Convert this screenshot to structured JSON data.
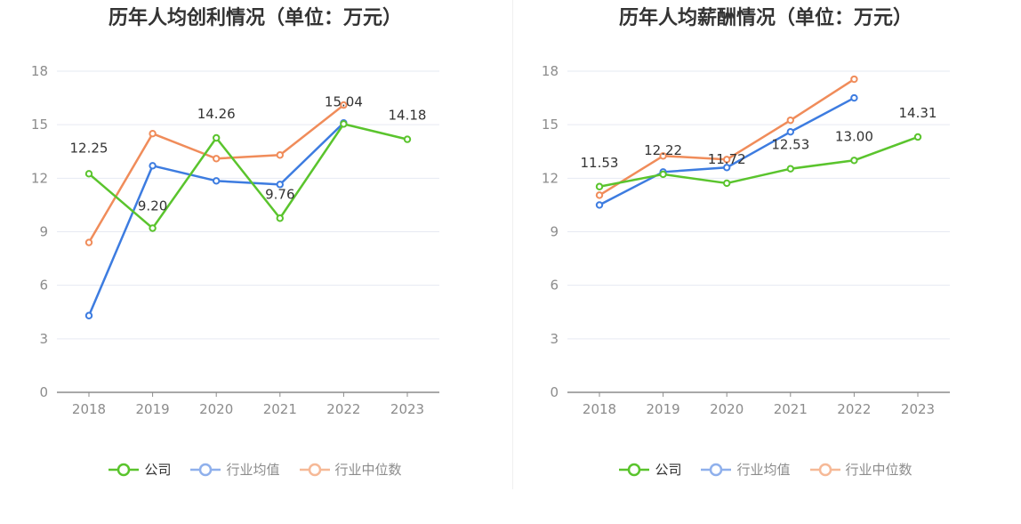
{
  "chart_data": [
    {
      "type": "line",
      "title": "历年人均创利情况（单位：万元）",
      "categories": [
        "2018",
        "2019",
        "2020",
        "2021",
        "2022",
        "2023"
      ],
      "y_ticks": [
        "0",
        "3",
        "6",
        "9",
        "12",
        "15",
        "18"
      ],
      "ylim": [
        0,
        18
      ],
      "grid": true,
      "legend_position": "bottom",
      "series": [
        {
          "name": "公司",
          "color": "#5ac42d",
          "values": [
            12.25,
            9.2,
            14.26,
            9.76,
            15.04,
            14.18
          ],
          "labels": [
            "12.25",
            "9.20",
            "14.26",
            "9.76",
            "15.04",
            "14.18"
          ]
        },
        {
          "name": "行业均值",
          "color": "#3d7ce0",
          "values": [
            4.3,
            12.7,
            11.85,
            11.65,
            15.1,
            null
          ]
        },
        {
          "name": "行业中位数",
          "color": "#f08c5a",
          "values": [
            8.4,
            14.5,
            13.1,
            13.3,
            16.1,
            null
          ]
        }
      ]
    },
    {
      "type": "line",
      "title": "历年人均薪酬情况（单位：万元）",
      "categories": [
        "2018",
        "2019",
        "2020",
        "2021",
        "2022",
        "2023"
      ],
      "y_ticks": [
        "0",
        "3",
        "6",
        "9",
        "12",
        "15",
        "18"
      ],
      "ylim": [
        0,
        18
      ],
      "grid": true,
      "legend_position": "bottom",
      "series": [
        {
          "name": "公司",
          "color": "#5ac42d",
          "values": [
            11.53,
            12.22,
            11.72,
            12.53,
            13.0,
            14.31
          ],
          "labels": [
            "11.53",
            "12.22",
            "11.72",
            "12.53",
            "13.00",
            "14.31"
          ]
        },
        {
          "name": "行业均值",
          "color": "#3d7ce0",
          "values": [
            10.5,
            12.35,
            12.6,
            14.6,
            16.5,
            null
          ]
        },
        {
          "name": "行业中位数",
          "color": "#f08c5a",
          "values": [
            11.05,
            13.25,
            13.05,
            15.25,
            17.55,
            null
          ]
        }
      ]
    }
  ]
}
